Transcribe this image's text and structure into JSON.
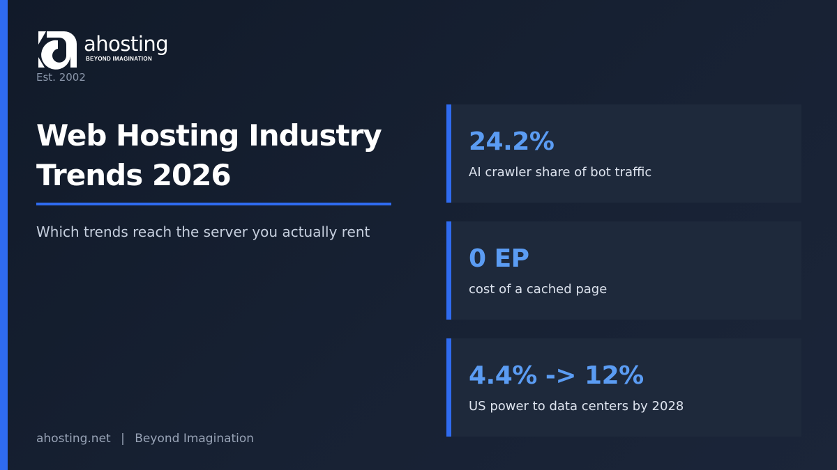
{
  "brand": {
    "logo_icon": "ahosting-a-mark-icon",
    "name": "ahosting",
    "tagline": "BEYOND IMAGINATION",
    "established": "Est. 2002"
  },
  "hero": {
    "title_line_1": "Web Hosting Industry",
    "title_line_2": "Trends 2026",
    "subtitle": "Which trends reach the server you actually rent"
  },
  "stats": [
    {
      "value": "24.2%",
      "label": "AI crawler share of bot traffic"
    },
    {
      "value": "0 EP",
      "label": "cost of a cached page"
    },
    {
      "value": "4.4% -> 12%",
      "label": "US power to data centers by 2028"
    }
  ],
  "footer": {
    "site": "ahosting.net",
    "separator": "|",
    "slogan": "Beyond Imagination"
  },
  "colors": {
    "background": "#172133",
    "accent": "#2f6bf0",
    "stat_value": "#5b9cf3",
    "card_background": "#1e293b"
  }
}
